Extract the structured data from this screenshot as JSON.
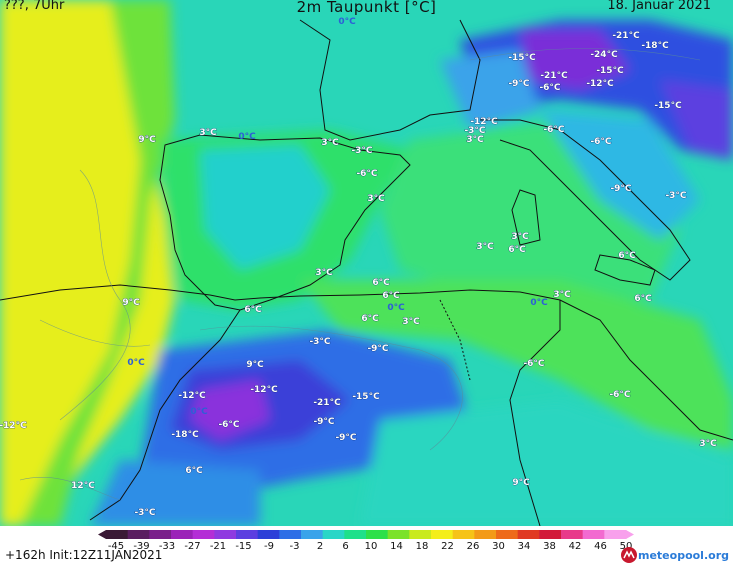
{
  "header": {
    "left": "???, 7Uhr",
    "title": "2m Taupunkt [°C]",
    "right": "18. Januar 2021"
  },
  "footer": {
    "forecast": "+162h Init:12Z11JAN2021",
    "brand": "meteopool.org"
  },
  "scale": {
    "ticks": [
      "-45",
      "-39",
      "-33",
      "-27",
      "-21",
      "-15",
      "-9",
      "-3",
      "2",
      "6",
      "10",
      "14",
      "18",
      "22",
      "26",
      "30",
      "34",
      "38",
      "42",
      "46",
      "50"
    ],
    "colors": [
      "#3a1a35",
      "#5a1e60",
      "#7a1f8a",
      "#9b22b8",
      "#b42ed6",
      "#8f3ae0",
      "#5c3fe0",
      "#2d3fd8",
      "#2e6ee6",
      "#3aa3ea",
      "#29d6c7",
      "#1ee08a",
      "#2ee04a",
      "#7be22a",
      "#c9ea1e",
      "#f4ee1a",
      "#f6c318",
      "#f39a18",
      "#ee6a1a",
      "#e03a22",
      "#d21a3a",
      "#e83a8a",
      "#f26ad0",
      "#f8a0ec"
    ]
  },
  "labels": [
    {
      "t": "0°C",
      "c": "blue"
    },
    {
      "t": "-21°C",
      "c": "white"
    },
    {
      "t": "-18°C",
      "c": "white"
    },
    {
      "t": "-15°C",
      "c": "white"
    },
    {
      "t": "-24°C",
      "c": "white"
    },
    {
      "t": "-21°C",
      "c": "white"
    },
    {
      "t": "-15°C",
      "c": "white"
    },
    {
      "t": "-9°C",
      "c": "white"
    },
    {
      "t": "-6°C",
      "c": "white"
    },
    {
      "t": "-12°C",
      "c": "white"
    },
    {
      "t": "-15°C",
      "c": "white"
    },
    {
      "t": "-12°C",
      "c": "white"
    },
    {
      "t": "-3°C",
      "c": "white"
    },
    {
      "t": "9°C",
      "c": "white"
    },
    {
      "t": "3°C",
      "c": "white"
    },
    {
      "t": "0°C",
      "c": "blue"
    },
    {
      "t": "3°C",
      "c": "white"
    },
    {
      "t": "-3°C",
      "c": "white"
    },
    {
      "t": "3°C",
      "c": "white"
    },
    {
      "t": "-6°C",
      "c": "white"
    },
    {
      "t": "-6°C",
      "c": "white"
    },
    {
      "t": "-6°C",
      "c": "white"
    },
    {
      "t": "-9°C",
      "c": "white"
    },
    {
      "t": "-3°C",
      "c": "white"
    },
    {
      "t": "3°C",
      "c": "white"
    },
    {
      "t": "3°C",
      "c": "white"
    },
    {
      "t": "6°C",
      "c": "white"
    },
    {
      "t": "3°C",
      "c": "white"
    },
    {
      "t": "6°C",
      "c": "white"
    },
    {
      "t": "6°C",
      "c": "white"
    },
    {
      "t": "3°C",
      "c": "white"
    },
    {
      "t": "0°C",
      "c": "blue"
    },
    {
      "t": "6°C",
      "c": "white"
    },
    {
      "t": "6°C",
      "c": "white"
    },
    {
      "t": "0°C",
      "c": "blue"
    },
    {
      "t": "3°C",
      "c": "white"
    },
    {
      "t": "6°C",
      "c": "white"
    },
    {
      "t": "9°C",
      "c": "white"
    },
    {
      "t": "6°C",
      "c": "white"
    },
    {
      "t": "3°C",
      "c": "white"
    },
    {
      "t": "-3°C",
      "c": "white"
    },
    {
      "t": "-9°C",
      "c": "white"
    },
    {
      "t": "-6°C",
      "c": "white"
    },
    {
      "t": "0°C",
      "c": "blue"
    },
    {
      "t": "9°C",
      "c": "white"
    },
    {
      "t": "-12°C",
      "c": "white"
    },
    {
      "t": "-21°C",
      "c": "white"
    },
    {
      "t": "-15°C",
      "c": "white"
    },
    {
      "t": "-12°C",
      "c": "white"
    },
    {
      "t": "0°C",
      "c": "blue"
    },
    {
      "t": "-6°C",
      "c": "white"
    },
    {
      "t": "-18°C",
      "c": "white"
    },
    {
      "t": "-9°C",
      "c": "white"
    },
    {
      "t": "-9°C",
      "c": "white"
    },
    {
      "t": "-6°C",
      "c": "white"
    },
    {
      "t": "3°C",
      "c": "white"
    },
    {
      "t": "6°C",
      "c": "white"
    },
    {
      "t": "-12°C",
      "c": "white"
    },
    {
      "t": "12°C",
      "c": "white"
    },
    {
      "t": "9°C",
      "c": "white"
    },
    {
      "t": "-3°C",
      "c": "white"
    },
    {
      "t": "-9°C",
      "c": "white"
    }
  ]
}
